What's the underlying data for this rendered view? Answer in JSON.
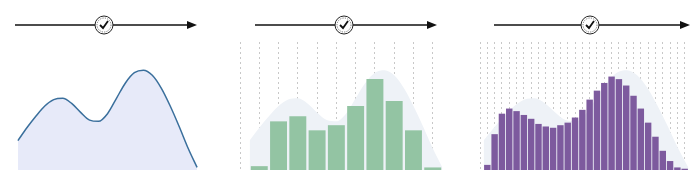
{
  "chart_data": [
    {
      "type": "line",
      "x": [
        0,
        0.5,
        1,
        1.5,
        2,
        2.5,
        3,
        3.5,
        4,
        4.5,
        5,
        5.5,
        6,
        6.5,
        7,
        7.5,
        8,
        8.5,
        9,
        9.5,
        10
      ],
      "values": [
        23,
        33,
        42,
        50,
        55,
        56,
        52,
        45,
        39,
        38,
        44,
        56,
        68,
        76,
        78,
        74,
        64,
        50,
        34,
        17,
        2
      ],
      "color": "#3a6f9c",
      "xlim": [
        0,
        10
      ],
      "ylim": [
        0,
        100
      ],
      "grid": false,
      "tick_labels": false
    },
    {
      "type": "histogram",
      "bins": [
        0,
        1,
        2,
        3,
        4,
        5,
        6,
        7,
        8,
        9,
        10
      ],
      "values": [
        3,
        38,
        42,
        31,
        35,
        50,
        71,
        54,
        31,
        2
      ],
      "color": "#93c4a3",
      "curve": {
        "x": [
          0,
          0.5,
          1,
          1.5,
          2,
          2.5,
          3,
          3.5,
          4,
          4.5,
          5,
          5.5,
          6,
          6.5,
          7,
          7.5,
          8,
          8.5,
          9,
          9.5,
          10
        ],
        "values": [
          23,
          33,
          42,
          50,
          55,
          56,
          52,
          45,
          39,
          38,
          44,
          56,
          68,
          76,
          78,
          74,
          64,
          50,
          34,
          17,
          2
        ],
        "color": "#eef2f7"
      },
      "xlim": [
        0,
        10
      ],
      "ylim": [
        0,
        100
      ],
      "grid": true,
      "tick_labels": false
    },
    {
      "type": "histogram",
      "bins": [
        0,
        1,
        2,
        3,
        4,
        5,
        6,
        7,
        8,
        9,
        10,
        11,
        12,
        13,
        14,
        15,
        16,
        17,
        18,
        19,
        20,
        21,
        22,
        23,
        24,
        25,
        26,
        27,
        28
      ],
      "values": [
        4,
        28,
        44,
        48,
        46,
        43,
        40,
        36,
        34,
        33,
        35,
        37,
        41,
        47,
        55,
        62,
        68,
        73,
        71,
        66,
        58,
        48,
        37,
        26,
        15,
        7,
        2,
        1
      ],
      "color": "#7d5a9e",
      "curve": {
        "x": [
          0,
          1.4,
          2.8,
          4.2,
          5.6,
          7,
          8.4,
          9.8,
          11.2,
          12.6,
          14,
          15.4,
          16.8,
          18.2,
          19.6,
          21,
          22.4,
          23.8,
          25.2,
          26.6,
          28
        ],
        "values": [
          23,
          33,
          42,
          50,
          55,
          56,
          52,
          45,
          39,
          38,
          44,
          56,
          68,
          76,
          78,
          74,
          64,
          50,
          34,
          17,
          2
        ],
        "color": "#eef2f7"
      },
      "xlim": [
        0,
        28
      ],
      "ylim": [
        0,
        100
      ],
      "grid": true,
      "tick_labels": false
    }
  ]
}
